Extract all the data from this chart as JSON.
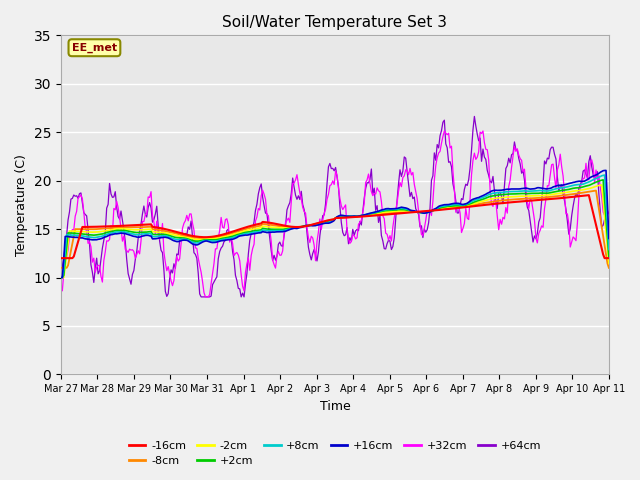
{
  "title": "Soil/Water Temperature Set 3",
  "xlabel": "Time",
  "ylabel": "Temperature (C)",
  "ylim": [
    0,
    35
  ],
  "yticks": [
    0,
    5,
    10,
    15,
    20,
    25,
    30,
    35
  ],
  "date_labels": [
    "Mar 27",
    "Mar 28",
    "Mar 29",
    "Mar 30",
    "Mar 31",
    "Apr 1",
    "Apr 2",
    "Apr 3",
    "Apr 4",
    "Apr 5",
    "Apr 6",
    "Apr 7",
    "Apr 8",
    "Apr 9",
    "Apr 10",
    "Apr 11"
  ],
  "series_colors": {
    "-16cm": "#ff0000",
    "-8cm": "#ff8800",
    "-2cm": "#ffff00",
    "+2cm": "#00cc00",
    "+8cm": "#00cccc",
    "+16cm": "#0000cc",
    "+32cm": "#ff00ff",
    "+64cm": "#8800cc"
  },
  "legend_box": {
    "text": "EE_met",
    "facecolor": "#ffffaa",
    "edgecolor": "#888800"
  },
  "plot_bg_color": "#e8e8e8",
  "fig_bg_color": "#f0f0f0",
  "grid_color": "#ffffff",
  "n_points": 384
}
